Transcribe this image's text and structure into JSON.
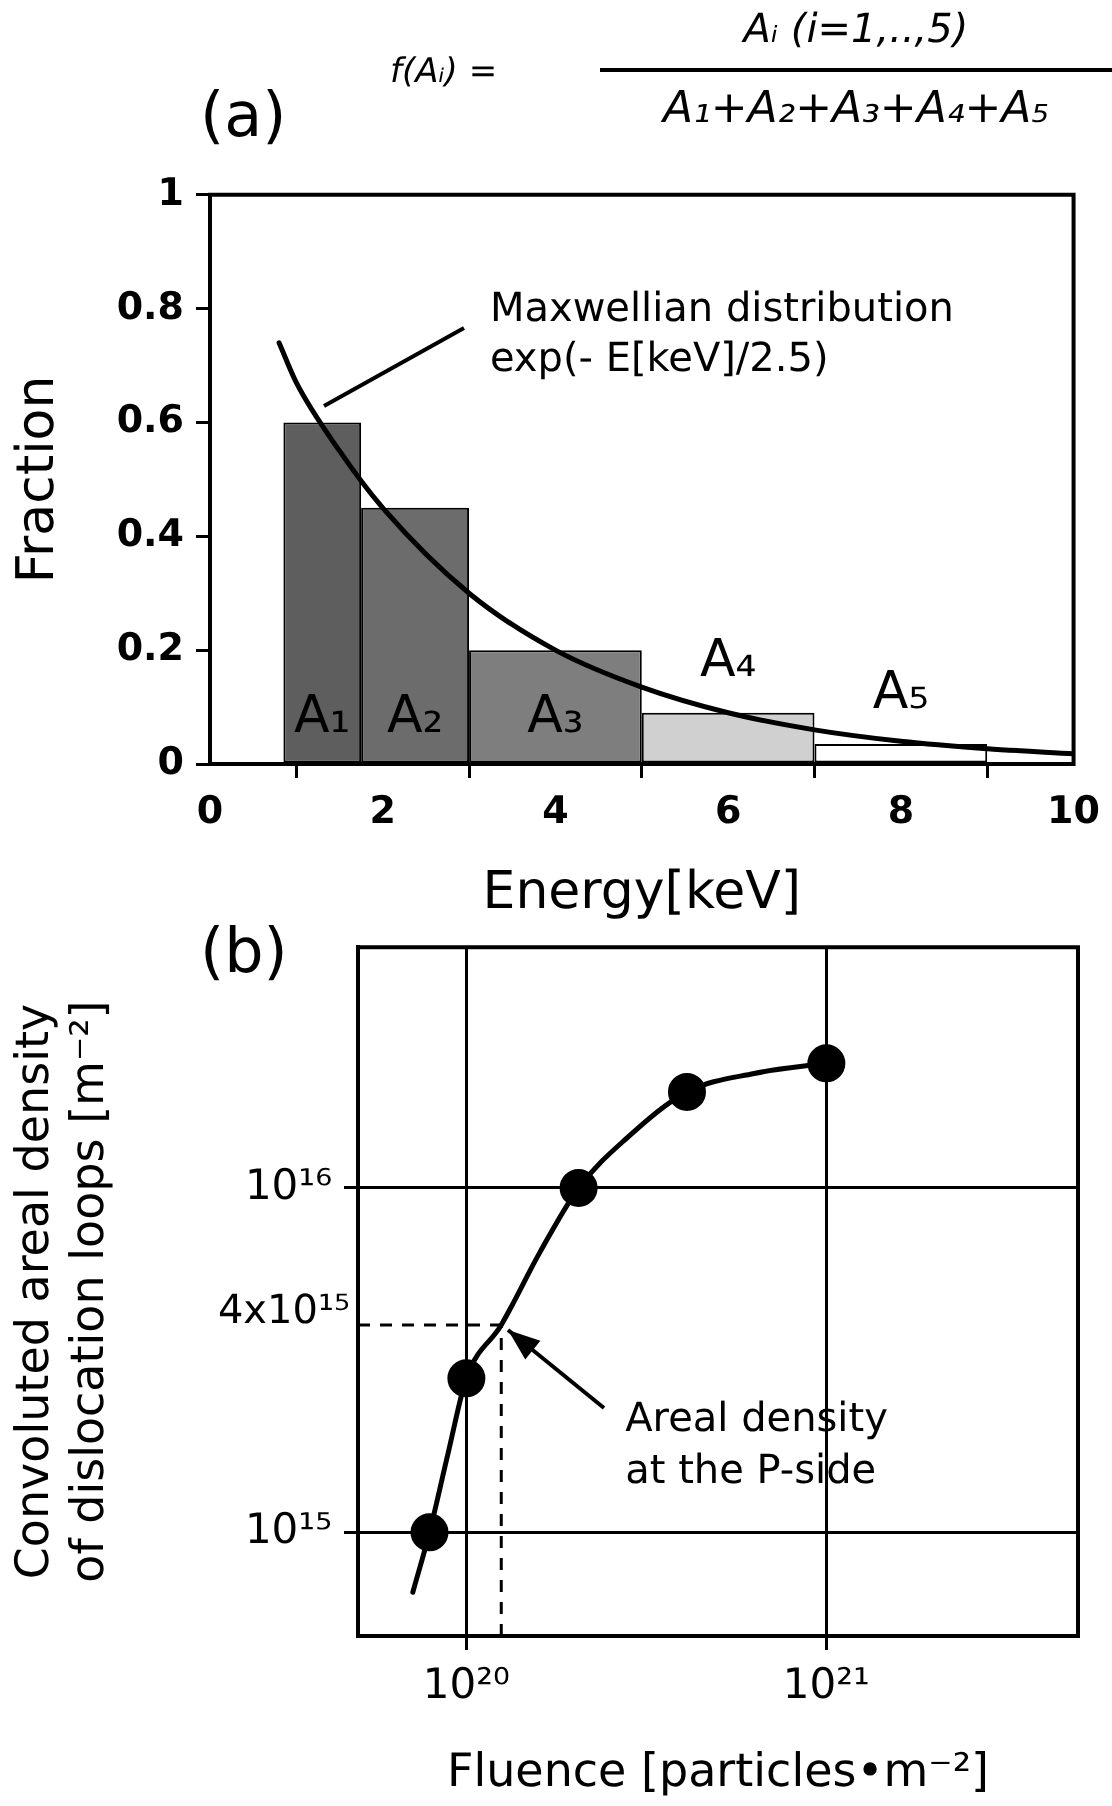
{
  "chart_data": [
    {
      "type": "histogram",
      "title": "(a)",
      "xlabel": "Energy[keV]",
      "ylabel": "Fraction",
      "xlim": [
        0,
        10
      ],
      "ylim": [
        0,
        1
      ],
      "xticks": [
        0,
        2,
        4,
        6,
        8,
        10
      ],
      "yticks": [
        0,
        0.2,
        0.4,
        0.6,
        0.8,
        1
      ],
      "grid": false,
      "legend": false,
      "series": [
        {
          "bins": [
            0.85,
            1.75,
            3,
            5,
            7,
            9
          ],
          "values": [
            0.6,
            0.45,
            0.2,
            0.09,
            0.035
          ],
          "colors": [
            "#5e5e5e",
            "#6c6c6c",
            "#7e7e7e",
            "#d0d0d0",
            "#ffffff"
          ]
        },
        {
          "type": "line",
          "x": [
            0.8,
            1,
            1.5,
            2,
            3,
            4,
            5,
            6,
            7,
            8,
            9,
            10
          ],
          "values": [
            0.74,
            0.67,
            0.55,
            0.45,
            0.3,
            0.2,
            0.135,
            0.09,
            0.06,
            0.04,
            0.027,
            0.018
          ],
          "color": "#000000",
          "marker": "none"
        }
      ],
      "annotations": [
        "f(Aᵢ) =",
        "Aᵢ (i=1,..,5)",
        "A₁+A₂+A₃+A₄+A₅",
        {
          "text": "Maxwellian distribution\nexp(- E[keV]/2.5)",
          "x": 1.25,
          "y": 0.61
        },
        "A₁",
        "A₂",
        "A₃",
        "A₄",
        "A₅"
      ]
    },
    {
      "type": "scatter",
      "title": "(b)",
      "xlabel": "Fluence [particles•m⁻²]",
      "ylabel": "Convoluted areal density\nof dislocation loops [m⁻²]",
      "log": "xy",
      "xlim": [
        5e+19,
        5e+21
      ],
      "ylim": [
        500000000000000.0,
        5e+16
      ],
      "xticks": [
        {
          "value": 1e+20,
          "label": "10²⁰"
        },
        {
          "value": 1e+21,
          "label": "10²¹"
        }
      ],
      "yticks": [
        {
          "value": 1000000000000000.0,
          "label": "10¹⁵"
        },
        {
          "value": 1e+16,
          "label": "10¹⁶"
        }
      ],
      "grid": true,
      "legend": false,
      "series": [
        {
          "x": [
            7.9e+19,
            1e+20,
            2.05e+20,
            4.1e+20,
            1e+21
          ],
          "values": [
            1000000000000000.0,
            2800000000000000.0,
            1e+16,
            1.9e+16,
            2.3e+16
          ],
          "color": "#000000",
          "marker": "circle"
        },
        {
          "type": "line",
          "x": [
            7.1e+19,
            7.9e+19,
            8.9e+19,
            1e+20,
            1.25e+20,
            1.6e+20,
            2.05e+20,
            2.8e+20,
            4.1e+20,
            6.3e+20,
            1e+21
          ],
          "values": [
            670000000000000.0,
            1000000000000000.0,
            1700000000000000.0,
            2800000000000000.0,
            4000000000000000.0,
            6500000000000000.0,
            1e+16,
            1.4e+16,
            1.9e+16,
            2.15e+16,
            2.3e+16
          ],
          "color": "#000000",
          "marker": "none"
        }
      ],
      "ref_lines": [
        {
          "axis": "y",
          "value": 4000000000000000.0,
          "label": "4x10¹⁵",
          "line_style": "dashed"
        },
        {
          "axis": "x",
          "value": 1.25e+20,
          "line_style": "dashed"
        }
      ],
      "annotations": [
        {
          "text": "Areal density\nat the P-side",
          "x": 1.25e+20,
          "y": 4000000000000000.0
        }
      ]
    }
  ]
}
